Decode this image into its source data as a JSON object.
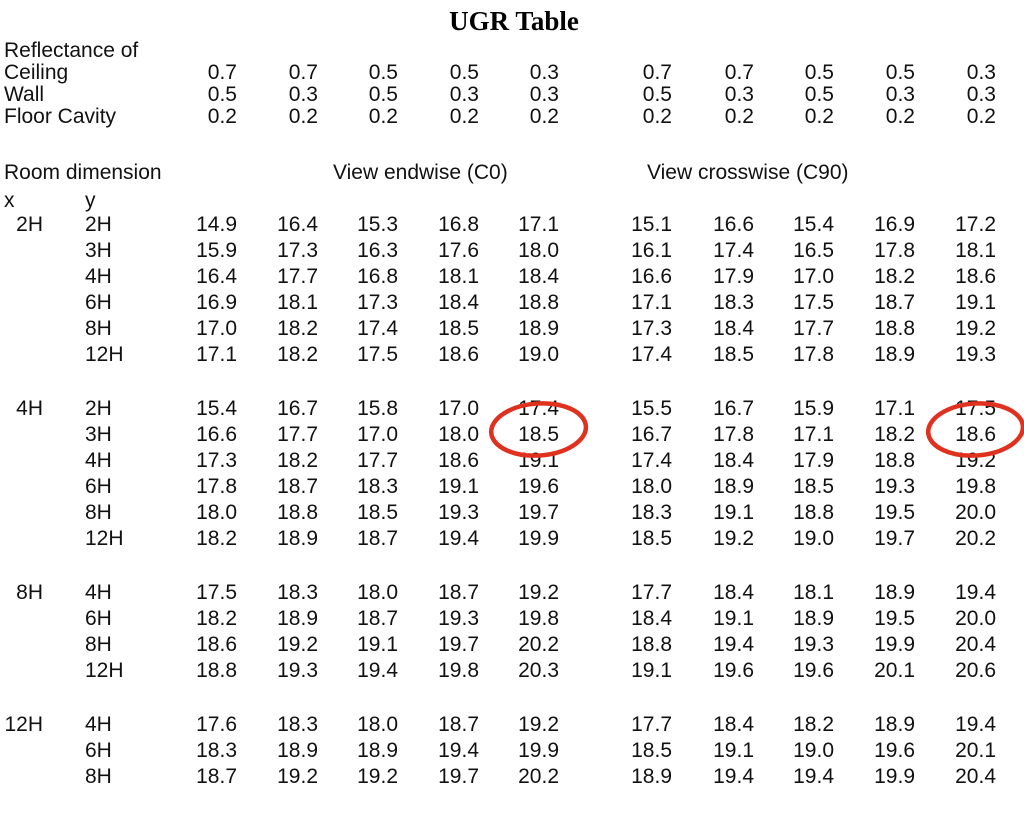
{
  "title": "UGR Table",
  "reflectance": {
    "section_label": "Reflectance of",
    "rows": [
      {
        "label": "Ceiling",
        "values": [
          "0.7",
          "0.7",
          "0.5",
          "0.5",
          "0.3",
          "0.7",
          "0.7",
          "0.5",
          "0.5",
          "0.3"
        ]
      },
      {
        "label": "Wall",
        "values": [
          "0.5",
          "0.3",
          "0.5",
          "0.3",
          "0.3",
          "0.5",
          "0.3",
          "0.5",
          "0.3",
          "0.3"
        ]
      },
      {
        "label": "Floor Cavity",
        "values": [
          "0.2",
          "0.2",
          "0.2",
          "0.2",
          "0.2",
          "0.2",
          "0.2",
          "0.2",
          "0.2",
          "0.2"
        ]
      }
    ]
  },
  "headers": {
    "room_dimension": "Room dimension",
    "view_endwise": "View endwise (C0)",
    "view_crosswise": "View crosswise (C90)",
    "x": "x",
    "y": "y"
  },
  "blocks": [
    {
      "x": "2H",
      "rows": [
        {
          "y": "2H",
          "values": [
            "14.9",
            "16.4",
            "15.3",
            "16.8",
            "17.1",
            "15.1",
            "16.6",
            "15.4",
            "16.9",
            "17.2"
          ]
        },
        {
          "y": "3H",
          "values": [
            "15.9",
            "17.3",
            "16.3",
            "17.6",
            "18.0",
            "16.1",
            "17.4",
            "16.5",
            "17.8",
            "18.1"
          ]
        },
        {
          "y": "4H",
          "values": [
            "16.4",
            "17.7",
            "16.8",
            "18.1",
            "18.4",
            "16.6",
            "17.9",
            "17.0",
            "18.2",
            "18.6"
          ]
        },
        {
          "y": "6H",
          "values": [
            "16.9",
            "18.1",
            "17.3",
            "18.4",
            "18.8",
            "17.1",
            "18.3",
            "17.5",
            "18.7",
            "19.1"
          ]
        },
        {
          "y": "8H",
          "values": [
            "17.0",
            "18.2",
            "17.4",
            "18.5",
            "18.9",
            "17.3",
            "18.4",
            "17.7",
            "18.8",
            "19.2"
          ]
        },
        {
          "y": "12H",
          "values": [
            "17.1",
            "18.2",
            "17.5",
            "18.6",
            "19.0",
            "17.4",
            "18.5",
            "17.8",
            "18.9",
            "19.3"
          ]
        }
      ]
    },
    {
      "x": "4H",
      "rows": [
        {
          "y": "2H",
          "values": [
            "15.4",
            "16.7",
            "15.8",
            "17.0",
            "17.4",
            "15.5",
            "16.7",
            "15.9",
            "17.1",
            "17.5"
          ]
        },
        {
          "y": "3H",
          "values": [
            "16.6",
            "17.7",
            "17.0",
            "18.0",
            "18.5",
            "16.7",
            "17.8",
            "17.1",
            "18.2",
            "18.6"
          ]
        },
        {
          "y": "4H",
          "values": [
            "17.3",
            "18.2",
            "17.7",
            "18.6",
            "19.1",
            "17.4",
            "18.4",
            "17.9",
            "18.8",
            "19.2"
          ]
        },
        {
          "y": "6H",
          "values": [
            "17.8",
            "18.7",
            "18.3",
            "19.1",
            "19.6",
            "18.0",
            "18.9",
            "18.5",
            "19.3",
            "19.8"
          ]
        },
        {
          "y": "8H",
          "values": [
            "18.0",
            "18.8",
            "18.5",
            "19.3",
            "19.7",
            "18.3",
            "19.1",
            "18.8",
            "19.5",
            "20.0"
          ]
        },
        {
          "y": "12H",
          "values": [
            "18.2",
            "18.9",
            "18.7",
            "19.4",
            "19.9",
            "18.5",
            "19.2",
            "19.0",
            "19.7",
            "20.2"
          ]
        }
      ]
    },
    {
      "x": "8H",
      "rows": [
        {
          "y": "4H",
          "values": [
            "17.5",
            "18.3",
            "18.0",
            "18.7",
            "19.2",
            "17.7",
            "18.4",
            "18.1",
            "18.9",
            "19.4"
          ]
        },
        {
          "y": "6H",
          "values": [
            "18.2",
            "18.9",
            "18.7",
            "19.3",
            "19.8",
            "18.4",
            "19.1",
            "18.9",
            "19.5",
            "20.0"
          ]
        },
        {
          "y": "8H",
          "values": [
            "18.6",
            "19.2",
            "19.1",
            "19.7",
            "20.2",
            "18.8",
            "19.4",
            "19.3",
            "19.9",
            "20.4"
          ]
        },
        {
          "y": "12H",
          "values": [
            "18.8",
            "19.3",
            "19.4",
            "19.8",
            "20.3",
            "19.1",
            "19.6",
            "19.6",
            "20.1",
            "20.6"
          ]
        }
      ]
    },
    {
      "x": "12H",
      "rows": [
        {
          "y": "4H",
          "values": [
            "17.6",
            "18.3",
            "18.0",
            "18.7",
            "19.2",
            "17.7",
            "18.4",
            "18.2",
            "18.9",
            "19.4"
          ]
        },
        {
          "y": "6H",
          "values": [
            "18.3",
            "18.9",
            "18.9",
            "19.4",
            "19.9",
            "18.5",
            "19.1",
            "19.0",
            "19.6",
            "20.1"
          ]
        },
        {
          "y": "8H",
          "values": [
            "18.7",
            "19.2",
            "19.2",
            "19.7",
            "20.2",
            "18.9",
            "19.4",
            "19.4",
            "19.9",
            "20.4"
          ]
        }
      ]
    }
  ],
  "annotations": {
    "color": "#e0301e",
    "circled": [
      {
        "section": "View endwise (C0)",
        "x": "4H",
        "y": "3H",
        "value": "18.5",
        "block_index": 1,
        "row_index": 1,
        "col_index": 4
      },
      {
        "section": "View crosswise (C90)",
        "x": "4H",
        "y": "3H",
        "value": "18.6",
        "block_index": 1,
        "row_index": 1,
        "col_index": 9
      }
    ]
  }
}
